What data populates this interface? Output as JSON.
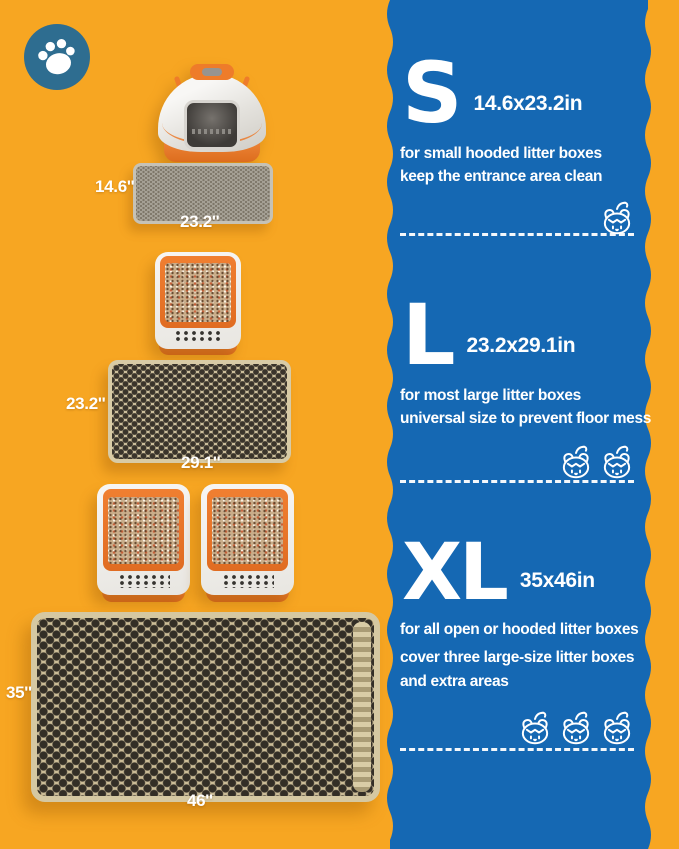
{
  "colors": {
    "background_yellow": "#F7A622",
    "panel_blue": "#1568B3",
    "badge_blue": "#2E6D90",
    "accent_orange": "#EE7C2A",
    "mat_beige": "#CBBC97",
    "text_white": "#FFFFFF"
  },
  "badge": {
    "icon": "paw-icon"
  },
  "left": {
    "small_mat": {
      "width_label": "14.6''",
      "length_label": "23.2''"
    },
    "large_mat": {
      "width_label": "23.2''",
      "length_label": "29.1''"
    },
    "xl_mat": {
      "width_label": "35''",
      "length_label": "46''"
    }
  },
  "sections": [
    {
      "letter": "S",
      "dimensions": "14.6x23.2in",
      "lines": [
        "for small hooded litter boxes",
        "keep the entrance area clean"
      ],
      "cat_count": 1
    },
    {
      "letter": "L",
      "dimensions": "23.2x29.1in",
      "lines": [
        "for most large litter boxes",
        "universal size to prevent floor mess"
      ],
      "cat_count": 2
    },
    {
      "letter": "XL",
      "dimensions": "35x46in",
      "lines": [
        "for all open or hooded litter boxes",
        "cover three large-size litter boxes",
        "and extra areas"
      ],
      "cat_count": 3
    }
  ]
}
